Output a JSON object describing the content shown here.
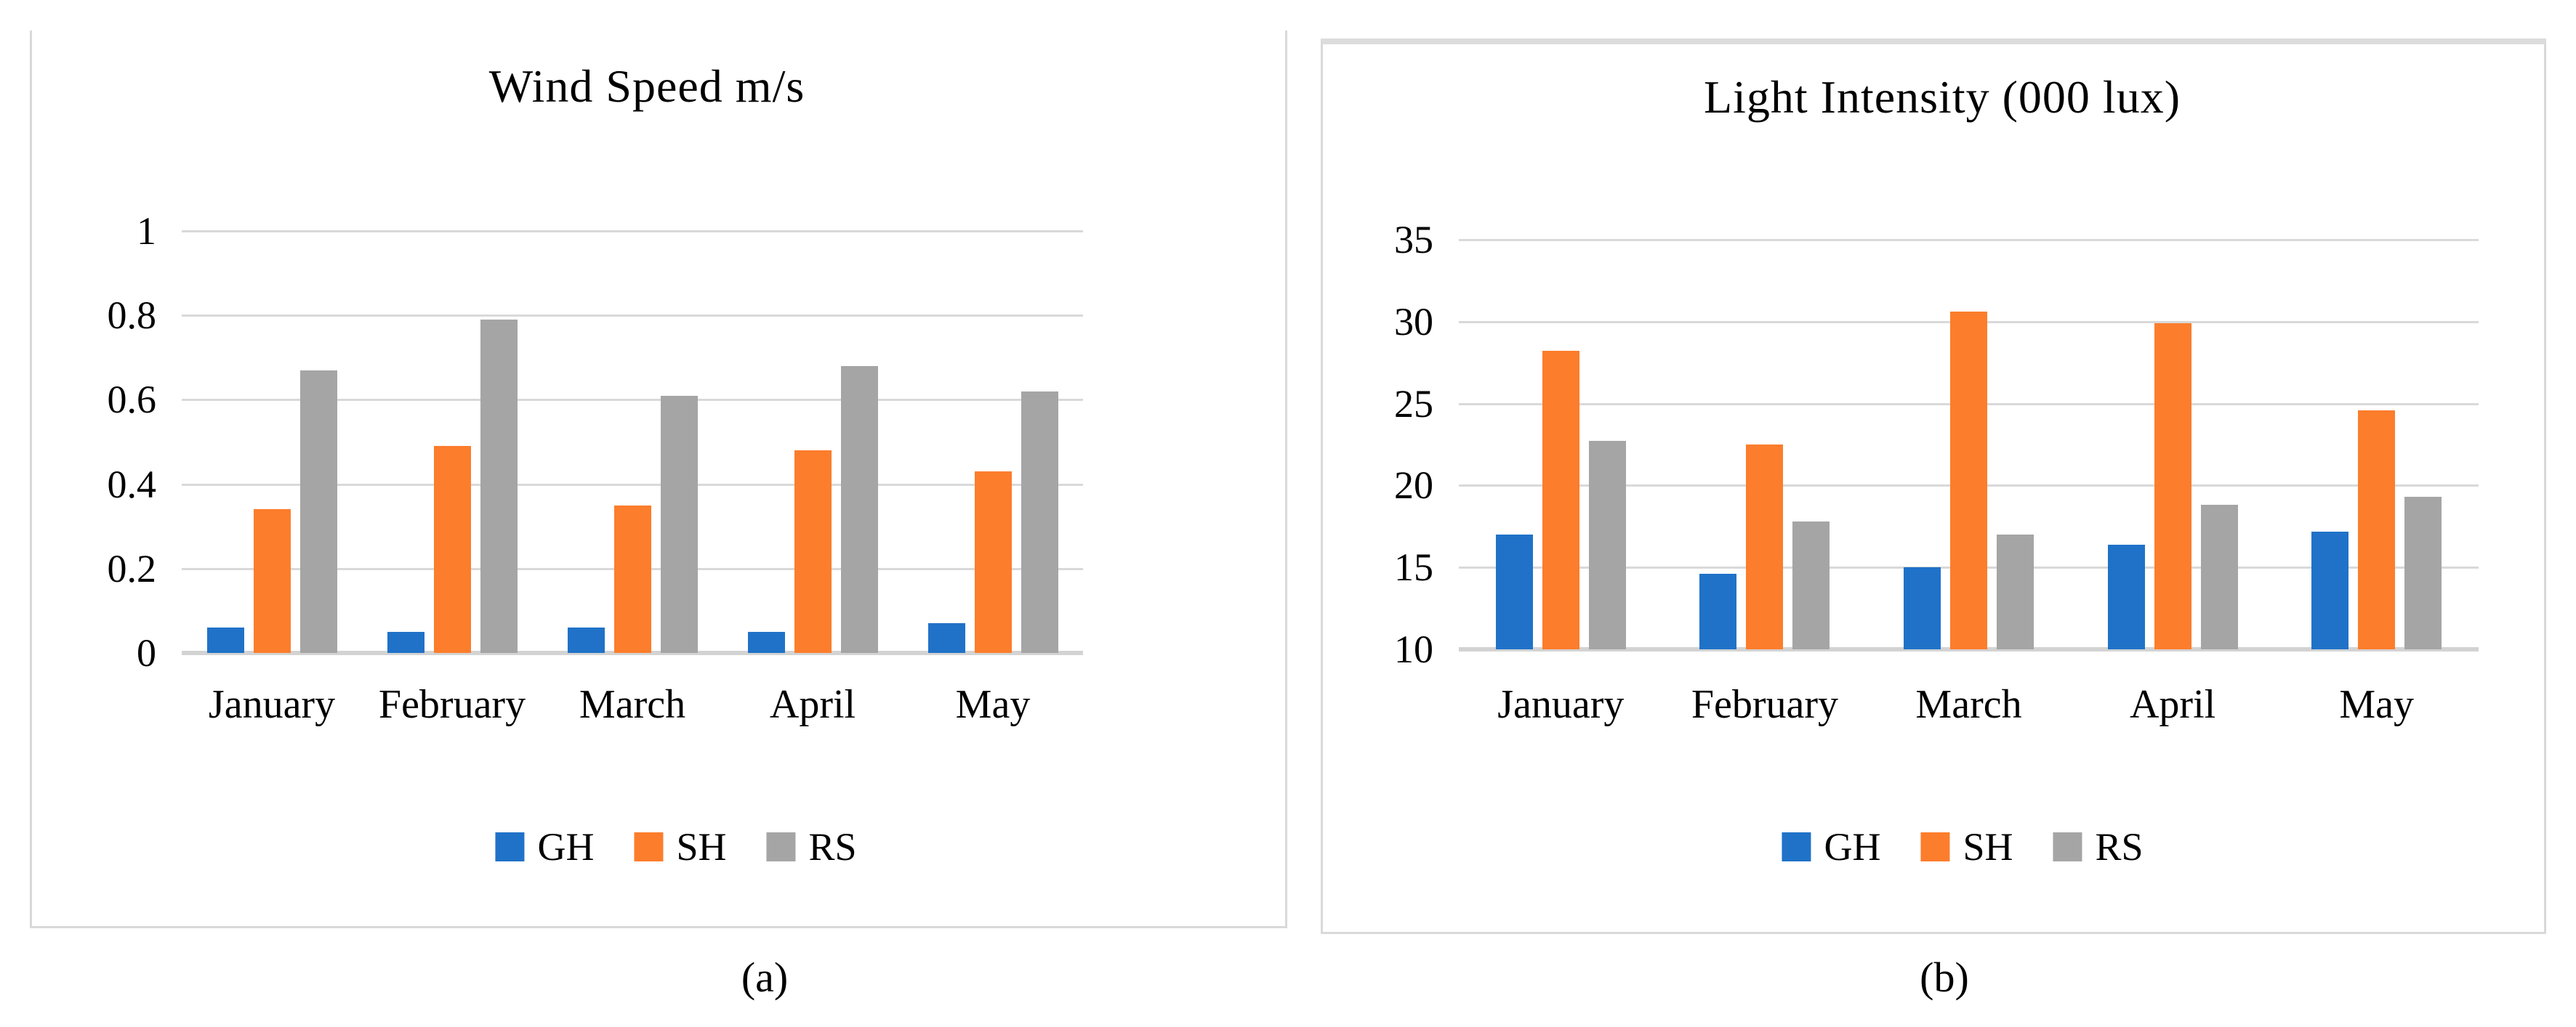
{
  "figure": {
    "caption_a": "(a)",
    "caption_b": "(b)"
  },
  "colors": {
    "gh_blue": "#2072C8",
    "sh_orange": "#FC7D2C",
    "rs_gray": "#A5A5A5"
  },
  "chart_data": [
    {
      "id": "wind-speed",
      "type": "bar",
      "title": "Wind Speed m/s",
      "categories": [
        "January",
        "February",
        "March",
        "April",
        "May"
      ],
      "series": [
        {
          "name": "GH",
          "color": "#2072C8",
          "values": [
            0.06,
            0.05,
            0.06,
            0.05,
            0.07
          ]
        },
        {
          "name": "SH",
          "color": "#FC7D2C",
          "values": [
            0.34,
            0.49,
            0.35,
            0.48,
            0.43
          ]
        },
        {
          "name": "RS",
          "color": "#A5A5A5",
          "values": [
            0.67,
            0.79,
            0.61,
            0.68,
            0.62
          ]
        }
      ],
      "xlabel": "",
      "ylabel": "",
      "ylim": [
        0,
        1
      ],
      "yticks": [
        0,
        0.2,
        0.4,
        0.6,
        0.8,
        1
      ],
      "ytick_labels": [
        "0",
        "0.2",
        "0.4",
        "0.6",
        "0.8",
        "1"
      ],
      "grid": true,
      "legend_position": "bottom",
      "caption": "(a)"
    },
    {
      "id": "light-intensity",
      "type": "bar",
      "title": "Light Intensity (000 lux)",
      "categories": [
        "January",
        "February",
        "March",
        "April",
        "May"
      ],
      "series": [
        {
          "name": "GH",
          "color": "#2072C8",
          "values": [
            17,
            14.6,
            15,
            16.4,
            17.2
          ]
        },
        {
          "name": "SH",
          "color": "#FC7D2C",
          "values": [
            28.2,
            22.5,
            30.6,
            29.9,
            24.6
          ]
        },
        {
          "name": "RS",
          "color": "#A5A5A5",
          "values": [
            22.7,
            17.8,
            17,
            18.8,
            19.3
          ]
        }
      ],
      "xlabel": "",
      "ylabel": "",
      "ylim": [
        10,
        35
      ],
      "yticks": [
        10,
        15,
        20,
        25,
        30,
        35
      ],
      "ytick_labels": [
        "10",
        "15",
        "20",
        "25",
        "30",
        "35"
      ],
      "grid": true,
      "legend_position": "bottom",
      "caption": "(b)"
    }
  ]
}
